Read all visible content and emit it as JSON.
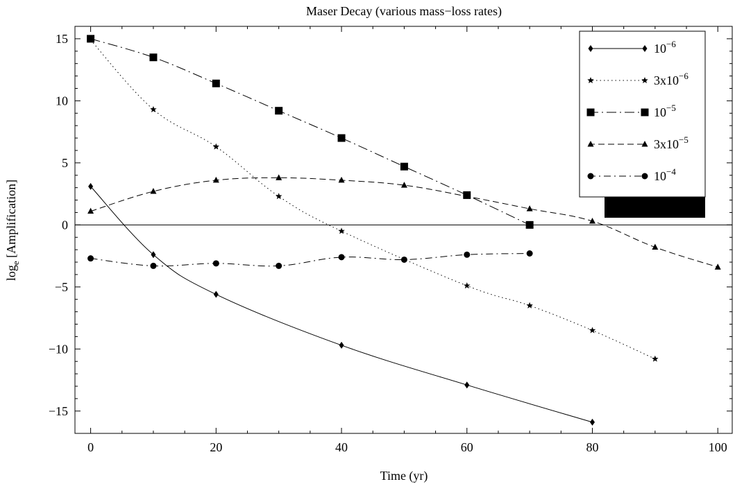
{
  "chart_data": {
    "type": "line",
    "title": "Maser Decay  (various mass−loss rates)",
    "xlabel": "Time  (yr)",
    "ylabel_main": "log",
    "ylabel_sub": "e",
    "ylabel_rest": " [Amplification]",
    "xlim": [
      -2.5,
      102.3
    ],
    "ylim": [
      -16.8,
      16.0
    ],
    "x_ticks": [
      0,
      20,
      40,
      60,
      80,
      100
    ],
    "y_ticks": [
      15,
      10,
      5,
      0,
      -5,
      -10,
      -15
    ],
    "y_tick_labels": [
      "15",
      "10",
      "5",
      "0",
      "−10",
      "−15"
    ],
    "y_tick_labels_full": [
      "15",
      "10",
      "5",
      "0",
      "−5",
      "−10",
      "−15"
    ],
    "zero_line": true,
    "grid": false,
    "legend_position": "top-right",
    "series": [
      {
        "legend_base": "10",
        "legend_exp": "−6",
        "marker": "diamond",
        "dash": "none",
        "x": [
          0,
          10,
          20,
          40,
          60,
          80
        ],
        "y": [
          3.1,
          -2.4,
          -5.6,
          -9.7,
          -12.9,
          -15.9
        ]
      },
      {
        "legend_base": "3x10",
        "legend_exp": "−6",
        "marker": "star",
        "dash": "dotted",
        "x": [
          0,
          10,
          20,
          30,
          40,
          60,
          70,
          80,
          90
        ],
        "y": [
          14.9,
          9.3,
          6.3,
          2.3,
          -0.5,
          -4.9,
          -6.5,
          -8.5,
          -10.8
        ]
      },
      {
        "legend_base": "10",
        "legend_exp": "−5",
        "marker": "square",
        "dash": "dashdot",
        "x": [
          0,
          10,
          20,
          30,
          40,
          50,
          60,
          70
        ],
        "y": [
          15.0,
          13.5,
          11.4,
          9.2,
          7.0,
          4.7,
          2.4,
          0.0
        ]
      },
      {
        "legend_base": "3x10",
        "legend_exp": "−5",
        "marker": "triangle",
        "dash": "dashed",
        "x": [
          0,
          10,
          20,
          30,
          40,
          50,
          60,
          70,
          80,
          90,
          100
        ],
        "y": [
          1.1,
          2.7,
          3.6,
          3.8,
          3.6,
          3.2,
          2.3,
          1.3,
          0.3,
          -1.8,
          -3.4
        ]
      },
      {
        "legend_base": "10",
        "legend_exp": "−4",
        "marker": "circle",
        "dash": "dashdot2",
        "x": [
          0,
          10,
          20,
          30,
          40,
          50,
          60,
          70
        ],
        "y": [
          -2.7,
          -3.3,
          -3.1,
          -3.3,
          -2.6,
          -2.8,
          -2.4,
          -2.3
        ]
      }
    ]
  }
}
